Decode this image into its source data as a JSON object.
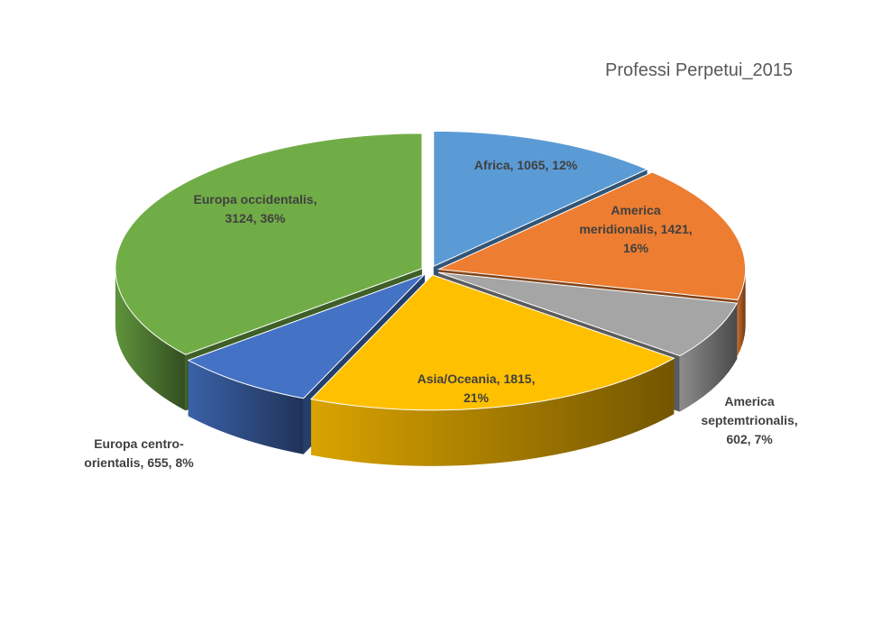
{
  "chart_data": {
    "type": "pie",
    "style": "3d-exploded",
    "title": "Professi Perpetui_2015",
    "slices": [
      {
        "name": "Africa",
        "value": 1065,
        "percent": "12%",
        "color": "#5B9BD5",
        "label_lines": [
          "Africa, 1065, 12%"
        ]
      },
      {
        "name": "America meridionalis",
        "value": 1421,
        "percent": "16%",
        "color": "#ED7D31",
        "label_lines": [
          "America",
          "meridionalis, 1421,",
          "16%"
        ]
      },
      {
        "name": "America septemtrionalis",
        "value": 602,
        "percent": "7%",
        "color": "#A5A5A5",
        "label_lines": [
          "America",
          "septemtrionalis,",
          "602, 7%"
        ]
      },
      {
        "name": "Asia/Oceania",
        "value": 1815,
        "percent": "21%",
        "color": "#FFC000",
        "label_lines": [
          "Asia/Oceania, 1815,",
          "21%"
        ]
      },
      {
        "name": "Europa centro-orientalis",
        "value": 655,
        "percent": "8%",
        "color": "#4472C4",
        "label_lines": [
          "Europa centro-",
          "orientalis, 655, 8%"
        ]
      },
      {
        "name": "Europa occidentalis",
        "value": 3124,
        "percent": "36%",
        "color": "#70AD47",
        "label_lines": [
          "Europa occidentalis,",
          "3124, 36%"
        ]
      }
    ],
    "legend": "none"
  }
}
